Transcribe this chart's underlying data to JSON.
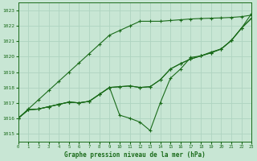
{
  "bg_color": "#c8e6d4",
  "plot_bg_color": "#c8e6d4",
  "grid_color": "#aed4c0",
  "line_color": "#1a6b1a",
  "title": "Graphe pression niveau de la mer (hPa)",
  "xlim": [
    0,
    23
  ],
  "ylim": [
    1014.5,
    1023.5
  ],
  "yticks": [
    1015,
    1016,
    1017,
    1018,
    1019,
    1020,
    1021,
    1022,
    1023
  ],
  "xticks": [
    0,
    1,
    2,
    3,
    4,
    5,
    6,
    7,
    8,
    9,
    10,
    11,
    12,
    13,
    14,
    15,
    16,
    17,
    18,
    19,
    20,
    21,
    22,
    23
  ],
  "series": [
    [
      1016.0,
      1016.55,
      1016.6,
      1016.75,
      1016.9,
      1017.05,
      1017.0,
      1017.1,
      1017.55,
      1018.0,
      1018.05,
      1018.1,
      1018.0,
      1018.05,
      1018.5,
      1019.2,
      1019.55,
      1019.85,
      1020.05,
      1020.25,
      1020.5,
      1021.05,
      1021.85,
      1022.5
    ],
    [
      1016.0,
      1016.55,
      1016.6,
      1016.75,
      1016.9,
      1017.05,
      1017.0,
      1017.1,
      1017.55,
      1018.0,
      1016.2,
      1016.0,
      1015.75,
      1015.2,
      1017.0,
      1018.6,
      1019.2,
      1019.95,
      1020.05,
      1020.3,
      1020.5,
      1021.05,
      1021.85,
      1022.8
    ],
    [
      1016.0,
      1016.55,
      1016.6,
      1016.75,
      1016.9,
      1017.05,
      1017.0,
      1017.1,
      1017.55,
      1018.0,
      1018.05,
      1018.1,
      1018.0,
      1018.05,
      1018.5,
      1019.2,
      1019.55,
      1019.85,
      1020.05,
      1020.25,
      1020.5,
      1021.05,
      1021.85,
      1022.5
    ],
    [
      1016.0,
      1016.6,
      1017.2,
      1017.8,
      1018.4,
      1019.0,
      1019.6,
      1020.2,
      1020.8,
      1021.4,
      1021.7,
      1022.0,
      1022.3,
      1022.3,
      1022.3,
      1022.35,
      1022.4,
      1022.45,
      1022.48,
      1022.5,
      1022.52,
      1022.55,
      1022.6,
      1022.7
    ]
  ]
}
